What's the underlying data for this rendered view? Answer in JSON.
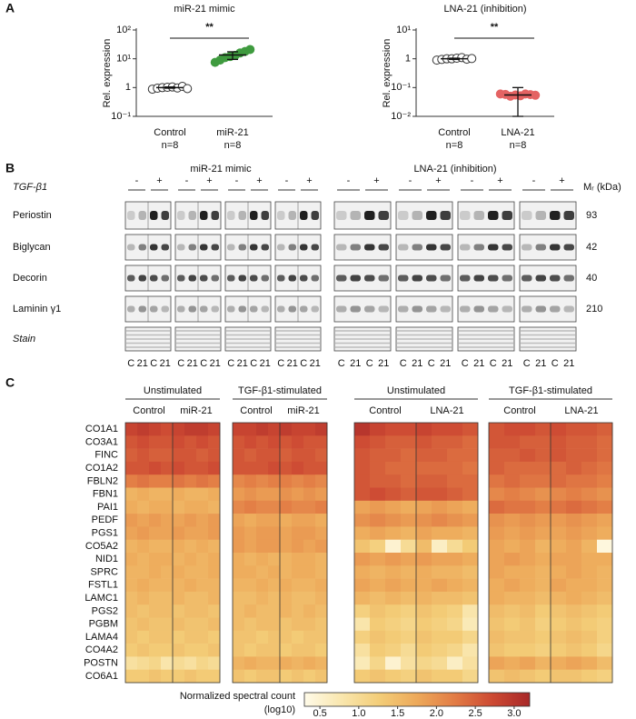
{
  "panel_labels": [
    "A",
    "B",
    "C"
  ],
  "chart_data": [
    {
      "type": "scatter",
      "title": "miR-21 mimic",
      "ylabel": "Rel. expression",
      "log_y": true,
      "ylim": [
        0.1,
        100
      ],
      "yticks": [
        {
          "value": 0.1,
          "label": "10⁻¹"
        },
        1,
        {
          "value": 10,
          "label": "10¹"
        },
        {
          "value": 100,
          "label": "10²"
        }
      ],
      "categories": [
        "Control",
        "miR-21"
      ],
      "n_labels": [
        "n=8",
        "n=8"
      ],
      "colors": [
        "#ffffff",
        "#3f9b3f"
      ],
      "values": [
        [
          0.88,
          0.95,
          1.0,
          1.02,
          1.05,
          0.97,
          1.1,
          0.92
        ],
        [
          7.5,
          9,
          11,
          12,
          13,
          16,
          18,
          21
        ]
      ],
      "means": [
        1.0,
        13.5
      ],
      "errors": [
        0.05,
        4
      ],
      "significance": "**"
    },
    {
      "type": "scatter",
      "title": "LNA-21 (inhibition)",
      "ylabel": "Rel. expression",
      "log_y": true,
      "ylim": [
        0.01,
        10
      ],
      "yticks": [
        {
          "value": 0.01,
          "label": "10⁻²"
        },
        {
          "value": 0.1,
          "label": "10⁻¹"
        },
        1,
        {
          "value": 10,
          "label": "10¹"
        }
      ],
      "categories": [
        "Control",
        "LNA-21"
      ],
      "n_labels": [
        "n=8",
        "n=8"
      ],
      "colors": [
        "#ffffff",
        "#e46363"
      ],
      "values": [
        [
          0.9,
          0.95,
          1.0,
          1.0,
          1.05,
          1.1,
          0.97,
          1.02
        ],
        [
          0.06,
          0.058,
          0.05,
          0.055,
          0.052,
          0.06,
          0.057,
          0.054
        ]
      ],
      "means": [
        1.0,
        0.055
      ],
      "errors": [
        0.05,
        0.045
      ],
      "significance": "**"
    },
    {
      "type": "heatmap",
      "groups": [
        {
          "name": "Unstimulated",
          "subgroups": [
            "Control",
            "miR-21"
          ]
        },
        {
          "name": "TGF-β1-stimulated",
          "subgroups": [
            "Control",
            "miR-21"
          ]
        }
      ],
      "rows": [
        "CO1A1",
        "CO3A1",
        "FINC",
        "CO1A2",
        "FBLN2",
        "FBN1",
        "PAI1",
        "PEDF",
        "PGS1",
        "CO5A2",
        "NID1",
        "SPRC",
        "FSTL1",
        "LAMC1",
        "PGS2",
        "PGBM",
        "LAMA4",
        "CO4A2",
        "POSTN",
        "CO6A1"
      ],
      "values": [
        [
          2.8,
          2.9,
          2.8,
          2.7,
          2.8,
          2.9,
          2.9,
          2.8,
          2.8,
          2.8,
          2.9,
          2.8,
          2.9,
          2.8,
          2.8,
          2.9
        ],
        [
          2.6,
          2.7,
          2.6,
          2.6,
          2.7,
          2.6,
          2.7,
          2.6,
          2.6,
          2.7,
          2.6,
          2.7,
          2.6,
          2.7,
          2.6,
          2.6
        ],
        [
          2.5,
          2.6,
          2.5,
          2.5,
          2.6,
          2.6,
          2.5,
          2.6,
          2.6,
          2.5,
          2.6,
          2.6,
          2.5,
          2.6,
          2.6,
          2.5
        ],
        [
          2.6,
          2.6,
          2.7,
          2.6,
          2.7,
          2.6,
          2.6,
          2.7,
          2.6,
          2.6,
          2.6,
          2.7,
          2.6,
          2.7,
          2.6,
          2.6
        ],
        [
          2.2,
          2.3,
          2.2,
          2.2,
          2.3,
          2.2,
          2.3,
          2.2,
          2.1,
          2.2,
          2.1,
          2.2,
          2.2,
          2.1,
          2.2,
          2.1
        ],
        [
          1.6,
          1.7,
          1.6,
          1.6,
          1.7,
          1.6,
          1.6,
          1.7,
          1.9,
          2.0,
          1.9,
          1.9,
          2.0,
          1.9,
          2.0,
          1.9
        ],
        [
          1.7,
          1.6,
          1.7,
          1.7,
          1.6,
          1.7,
          1.7,
          1.6,
          2.1,
          2.2,
          2.1,
          2.1,
          2.2,
          2.1,
          2.1,
          2.2
        ],
        [
          1.9,
          1.8,
          1.9,
          1.8,
          1.8,
          1.9,
          1.8,
          1.9,
          1.8,
          1.7,
          1.8,
          1.8,
          1.7,
          1.8,
          1.8,
          1.7
        ],
        [
          1.8,
          1.9,
          1.8,
          1.8,
          1.9,
          1.8,
          1.8,
          1.9,
          1.9,
          1.8,
          1.9,
          1.9,
          1.8,
          1.9,
          1.9,
          1.8
        ],
        [
          1.6,
          1.7,
          1.6,
          1.6,
          1.7,
          1.6,
          1.7,
          1.6,
          1.9,
          1.8,
          1.9,
          1.9,
          1.8,
          1.9,
          1.8,
          1.9
        ],
        [
          1.7,
          1.6,
          1.7,
          1.7,
          1.6,
          1.7,
          1.6,
          1.7,
          1.7,
          1.6,
          1.7,
          1.6,
          1.6,
          1.7,
          1.7,
          1.6
        ],
        [
          1.6,
          1.6,
          1.7,
          1.6,
          1.7,
          1.6,
          1.6,
          1.7,
          1.7,
          1.7,
          1.6,
          1.7,
          1.6,
          1.7,
          1.7,
          1.6
        ],
        [
          1.6,
          1.7,
          1.6,
          1.6,
          1.6,
          1.7,
          1.6,
          1.6,
          1.6,
          1.6,
          1.7,
          1.6,
          1.7,
          1.6,
          1.6,
          1.7
        ],
        [
          1.5,
          1.6,
          1.5,
          1.5,
          1.6,
          1.5,
          1.5,
          1.6,
          1.5,
          1.5,
          1.6,
          1.5,
          1.6,
          1.5,
          1.5,
          1.6
        ],
        [
          1.5,
          1.4,
          1.5,
          1.5,
          1.4,
          1.5,
          1.5,
          1.4,
          1.5,
          1.6,
          1.5,
          1.5,
          1.6,
          1.5,
          1.6,
          1.5
        ],
        [
          1.4,
          1.5,
          1.4,
          1.4,
          1.5,
          1.4,
          1.4,
          1.5,
          1.5,
          1.4,
          1.5,
          1.5,
          1.4,
          1.5,
          1.5,
          1.4
        ],
        [
          1.4,
          1.3,
          1.4,
          1.4,
          1.3,
          1.4,
          1.4,
          1.3,
          1.4,
          1.4,
          1.3,
          1.4,
          1.4,
          1.3,
          1.4,
          1.4
        ],
        [
          1.3,
          1.4,
          1.3,
          1.3,
          1.4,
          1.3,
          1.3,
          1.4,
          1.4,
          1.3,
          1.4,
          1.4,
          1.3,
          1.4,
          1.4,
          1.3
        ],
        [
          0.9,
          1.0,
          1.1,
          0.8,
          1.0,
          0.9,
          1.1,
          1.0,
          1.6,
          1.7,
          1.6,
          1.6,
          1.7,
          1.6,
          1.7,
          1.6
        ],
        [
          1.3,
          1.3,
          1.4,
          1.3,
          1.3,
          1.4,
          1.3,
          1.3,
          1.4,
          1.3,
          1.4,
          1.4,
          1.3,
          1.4,
          1.3,
          1.4
        ]
      ]
    },
    {
      "type": "heatmap",
      "groups": [
        {
          "name": "Unstimulated",
          "subgroups": [
            "Control",
            "LNA-21"
          ]
        },
        {
          "name": "TGF-β1-stimulated",
          "subgroups": [
            "Control",
            "LNA-21"
          ]
        }
      ],
      "values": [
        [
          3.0,
          2.8,
          2.7,
          2.7,
          2.8,
          2.7,
          2.7,
          2.6,
          2.6,
          2.7,
          2.7,
          2.6,
          2.7,
          2.6,
          2.6,
          2.5
        ],
        [
          2.7,
          2.6,
          2.5,
          2.5,
          2.6,
          2.5,
          2.5,
          2.4,
          2.6,
          2.6,
          2.5,
          2.5,
          2.6,
          2.5,
          2.5,
          2.4
        ],
        [
          2.6,
          2.5,
          2.5,
          2.4,
          2.5,
          2.5,
          2.4,
          2.4,
          2.5,
          2.5,
          2.6,
          2.5,
          2.6,
          2.5,
          2.5,
          2.4
        ],
        [
          2.6,
          2.5,
          2.4,
          2.4,
          2.4,
          2.4,
          2.4,
          2.3,
          2.5,
          2.4,
          2.4,
          2.4,
          2.4,
          2.5,
          2.4,
          2.3
        ],
        [
          2.6,
          2.5,
          2.5,
          2.4,
          2.5,
          2.5,
          2.4,
          2.4,
          2.3,
          2.4,
          2.3,
          2.3,
          2.4,
          2.3,
          2.3,
          2.2
        ],
        [
          2.6,
          2.7,
          2.6,
          2.5,
          2.6,
          2.6,
          2.5,
          2.4,
          2.1,
          2.2,
          2.1,
          2.0,
          2.1,
          2.2,
          2.1,
          2.0
        ],
        [
          1.8,
          1.9,
          1.8,
          1.7,
          1.8,
          1.9,
          1.8,
          1.7,
          2.4,
          2.3,
          2.3,
          2.2,
          2.3,
          2.4,
          2.3,
          2.2
        ],
        [
          2.0,
          2.1,
          2.0,
          1.9,
          2.0,
          2.1,
          2.0,
          1.9,
          2.0,
          1.9,
          2.0,
          1.9,
          1.9,
          2.0,
          1.9,
          1.8
        ],
        [
          1.7,
          1.8,
          1.7,
          1.6,
          1.8,
          1.7,
          1.7,
          1.6,
          1.9,
          1.8,
          1.9,
          1.8,
          1.8,
          1.9,
          1.8,
          1.7
        ],
        [
          1.4,
          1.2,
          0.5,
          1.0,
          1.5,
          0.6,
          1.0,
          1.3,
          1.8,
          1.7,
          1.8,
          1.6,
          1.7,
          1.8,
          1.6,
          0.4
        ],
        [
          1.9,
          1.8,
          1.9,
          1.8,
          1.9,
          1.8,
          1.8,
          1.7,
          1.8,
          1.9,
          1.8,
          1.7,
          1.8,
          1.8,
          1.7,
          1.7
        ],
        [
          1.7,
          1.6,
          1.7,
          1.6,
          1.7,
          1.6,
          1.6,
          1.5,
          1.8,
          1.7,
          1.7,
          1.6,
          1.7,
          1.8,
          1.7,
          1.6
        ],
        [
          1.8,
          1.7,
          1.8,
          1.7,
          1.7,
          1.8,
          1.7,
          1.6,
          1.7,
          1.8,
          1.7,
          1.6,
          1.8,
          1.7,
          1.7,
          1.6
        ],
        [
          1.6,
          1.5,
          1.6,
          1.5,
          1.6,
          1.5,
          1.5,
          1.4,
          1.7,
          1.6,
          1.6,
          1.5,
          1.6,
          1.7,
          1.6,
          1.5
        ],
        [
          1.2,
          1.4,
          1.3,
          1.2,
          1.4,
          1.3,
          1.2,
          0.8,
          1.5,
          1.4,
          1.5,
          1.3,
          1.4,
          1.5,
          1.4,
          1.3
        ],
        [
          0.8,
          1.3,
          1.2,
          1.1,
          1.3,
          1.2,
          1.1,
          0.7,
          1.4,
          1.3,
          1.4,
          1.2,
          1.3,
          1.4,
          1.3,
          1.2
        ],
        [
          1.2,
          1.4,
          1.3,
          1.2,
          1.4,
          1.3,
          1.3,
          1.1,
          1.5,
          1.4,
          1.4,
          1.3,
          1.4,
          1.5,
          1.4,
          1.2
        ],
        [
          0.9,
          1.3,
          1.2,
          1.0,
          1.3,
          1.2,
          1.1,
          0.8,
          1.4,
          1.3,
          1.3,
          1.2,
          1.3,
          1.4,
          1.3,
          1.1
        ],
        [
          0.7,
          1.1,
          0.5,
          0.9,
          1.1,
          1.0,
          0.6,
          0.9,
          1.8,
          1.7,
          1.8,
          1.6,
          1.7,
          1.8,
          1.7,
          1.5
        ],
        [
          1.3,
          1.4,
          1.3,
          1.2,
          1.4,
          1.3,
          1.3,
          1.1,
          1.4,
          1.5,
          1.4,
          1.3,
          1.4,
          1.4,
          1.3,
          1.2
        ]
      ]
    }
  ],
  "colorbar": {
    "label": "Normalized spectral count",
    "unit": "(log10)",
    "lim": [
      0.3,
      3.2
    ],
    "colors": [
      "#fffbe9",
      "#f9e6ad",
      "#f3cd78",
      "#eda95a",
      "#e27c45",
      "#cd4a33",
      "#a82828"
    ],
    "ticks": [
      0.5,
      {
        "value": 1,
        "label": "1.0"
      },
      1.5,
      {
        "value": 2,
        "label": "2.0"
      },
      2.5,
      {
        "value": 3,
        "label": "3.0"
      }
    ]
  },
  "blots": {
    "titles": [
      "miR-21 mimic",
      "LNA-21 (inhibition)"
    ],
    "treatment": "TGF-β1",
    "levels": [
      "-",
      "+"
    ],
    "mr_label": "Mᵣ (kDa)",
    "lane_labels": [
      "C",
      "21"
    ],
    "rows": [
      {
        "name": "Periostin",
        "kda": 93
      },
      {
        "name": "Biglycan",
        "kda": 42
      },
      {
        "name": "Decorin",
        "kda": 40
      },
      {
        "name": "Laminin γ1",
        "kda": 210
      },
      {
        "name": "Stain",
        "italic": true
      }
    ]
  }
}
